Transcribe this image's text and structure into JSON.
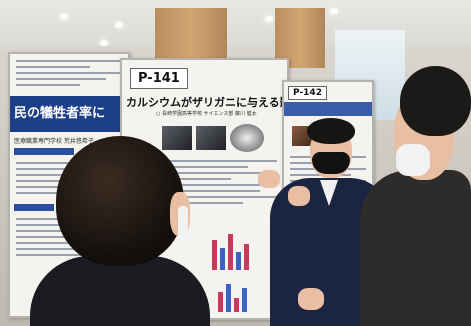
{
  "scene": {
    "description_free": true
  },
  "poster_left": {
    "banner_text": "民の犠牲者率に",
    "subtitle": "医療職業専門学校 荒井悠希子"
  },
  "poster_mid": {
    "label": "P-141",
    "title": "カルシウムがザリガニに与える影響",
    "author": "○ 長崎学園高等学校 サイエンス部 藤川 健太"
  },
  "poster_right": {
    "label": "P-142"
  },
  "colors": {
    "banner_blue": "#1d3f8a",
    "jacket_navy": "#1b2440",
    "mask_black": "#111111",
    "mask_white": "#f2f2f2"
  }
}
